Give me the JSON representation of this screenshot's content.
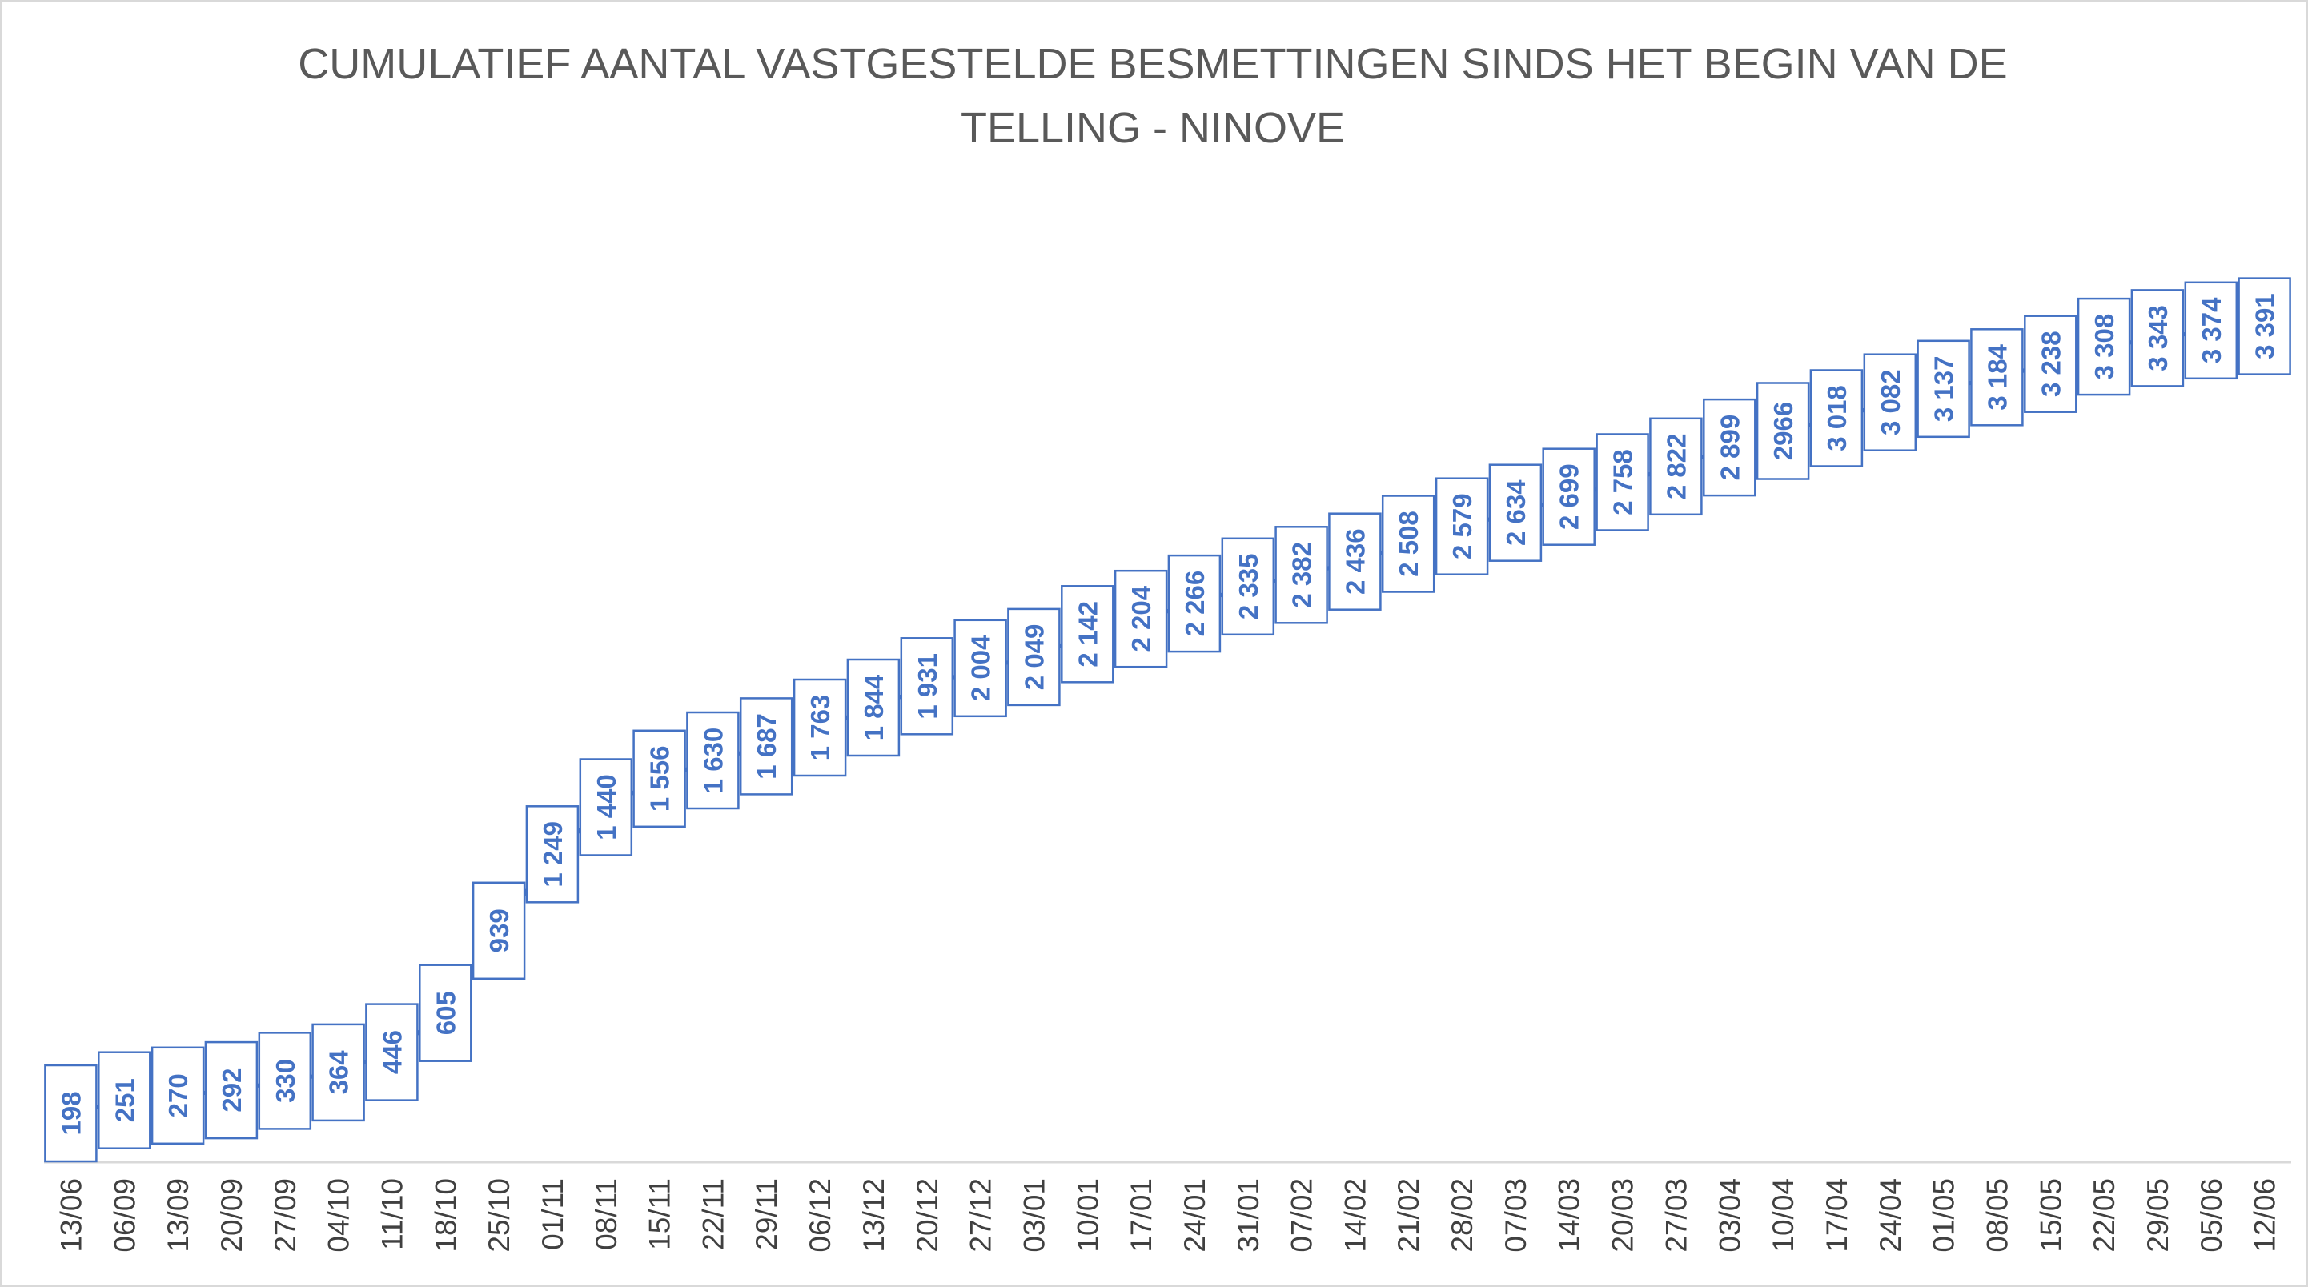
{
  "chart_data": {
    "type": "line",
    "title_lines": [
      "CUMULATIEF AANTAL VASTGESTELDE BESMETTINGEN SINDS HET BEGIN VAN DE",
      "TELLING - NINOVE"
    ],
    "xlabel": "",
    "ylabel": "",
    "ylim": [
      0,
      4000
    ],
    "grid": false,
    "legend": "none",
    "colors": {
      "series": "#4472c4",
      "title": "#595959",
      "ticks": "#404040",
      "axis": "#d9d9d9",
      "border": "#d9d9d9"
    },
    "categories": [
      "13/06",
      "06/09",
      "13/09",
      "20/09",
      "27/09",
      "04/10",
      "11/10",
      "18/10",
      "25/10",
      "01/11",
      "08/11",
      "15/11",
      "22/11",
      "29/11",
      "06/12",
      "13/12",
      "20/12",
      "27/12",
      "03/01",
      "10/01",
      "17/01",
      "24/01",
      "31/01",
      "07/02",
      "14/02",
      "21/02",
      "28/02",
      "07/03",
      "14/03",
      "20/03",
      "27/03",
      "03/04",
      "10/04",
      "17/04",
      "24/04",
      "01/05",
      "08/05",
      "15/05",
      "22/05",
      "29/05",
      "05/06",
      "12/06"
    ],
    "series": [
      {
        "values": [
          198,
          251,
          270,
          292,
          330,
          364,
          446,
          605,
          939,
          1249,
          1440,
          1556,
          1630,
          1687,
          1763,
          1844,
          1931,
          2004,
          2049,
          2142,
          2204,
          2266,
          2335,
          2382,
          2436,
          2508,
          2579,
          2634,
          2699,
          2758,
          2822,
          2899,
          2966,
          3018,
          3082,
          3137,
          3184,
          3238,
          3308,
          3343,
          3374,
          3391
        ],
        "labels": [
          "198",
          "251",
          "270",
          "292",
          "330",
          "364",
          "446",
          "605",
          "939",
          "1 249",
          "1 440",
          "1 556",
          "1 630",
          "1 687",
          "1 763",
          "1 844",
          "1 931",
          "2 004",
          "2 049",
          "2 142",
          "2 204",
          "2 266",
          "2 335",
          "2 382",
          "2 436",
          "2 508",
          "2 579",
          "2 634",
          "2 699",
          "2 758",
          "2 822",
          "2 899",
          "2966",
          "3 018",
          "3 082",
          "3 137",
          "3 184",
          "3 238",
          "3 308",
          "3 343",
          "3 374",
          "3 391"
        ]
      }
    ]
  }
}
